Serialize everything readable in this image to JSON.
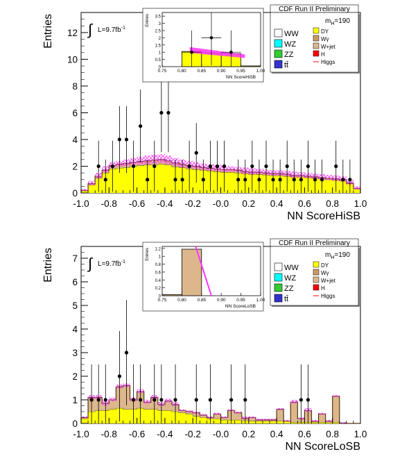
{
  "chart_data": [
    {
      "type": "bar",
      "ylabel": "Entries",
      "xlabel": "NN ScoreHiSB",
      "title": "CDF Run II Preliminary",
      "luminosity": "L=9.7fb",
      "lumi_exp": "-1",
      "mass_label": "m",
      "mass_sub": "H",
      "mass_value": "=190",
      "xlim": [
        -1.0,
        1.0
      ],
      "ylim": [
        0,
        13.5
      ],
      "xticks": [
        "-1.0",
        "-0.8",
        "-0.6",
        "-0.4",
        "-0.2",
        "-0.0",
        "0.2",
        "0.4",
        "0.6",
        "0.8",
        "1.0"
      ],
      "yticks": [
        "0",
        "2",
        "4",
        "6",
        "8",
        "10",
        "12"
      ],
      "bin_edges": [
        -1.0,
        -0.95,
        -0.9,
        -0.85,
        -0.8,
        -0.75,
        -0.7,
        -0.65,
        -0.6,
        -0.55,
        -0.5,
        -0.45,
        -0.4,
        -0.35,
        -0.3,
        -0.25,
        -0.2,
        -0.15,
        -0.1,
        -0.05,
        0.0,
        0.05,
        0.1,
        0.15,
        0.2,
        0.25,
        0.3,
        0.35,
        0.4,
        0.45,
        0.5,
        0.55,
        0.6,
        0.65,
        0.7,
        0.75,
        0.8,
        0.85,
        0.9,
        0.95,
        1.0
      ],
      "stack": [
        {
          "name": "DY",
          "color": "#ffff00",
          "values": [
            0.15,
            0.6,
            1.1,
            1.5,
            1.8,
            1.85,
            1.9,
            2.0,
            2.05,
            2.1,
            2.1,
            2.15,
            2.1,
            1.95,
            1.9,
            1.8,
            1.75,
            1.7,
            1.65,
            1.6,
            1.55,
            1.55,
            1.5,
            1.45,
            1.4,
            1.4,
            1.35,
            1.3,
            1.3,
            1.25,
            1.2,
            1.2,
            1.15,
            1.1,
            1.05,
            1.0,
            0.95,
            0.9,
            0.7,
            0.3
          ]
        },
        {
          "name": "W+jet",
          "color": "#dcb78c",
          "values": [
            0.05,
            0.1,
            0.15,
            0.2,
            0.25,
            0.3,
            0.3,
            0.3,
            0.3,
            0.3,
            0.35,
            0.35,
            0.3,
            0.3,
            0.25,
            0.25,
            0.25,
            0.2,
            0.2,
            0.2,
            0.2,
            0.2,
            0.2,
            0.15,
            0.15,
            0.15,
            0.15,
            0.15,
            0.15,
            0.15,
            0.1,
            0.1,
            0.1,
            0.1,
            0.1,
            0.1,
            0.1,
            0.1,
            0.05,
            0.05
          ]
        }
      ],
      "band": [
        0.3,
        0.9,
        1.5,
        2.0,
        2.3,
        2.4,
        2.5,
        2.6,
        2.7,
        2.8,
        2.85,
        2.9,
        2.8,
        2.6,
        2.5,
        2.4,
        2.3,
        2.2,
        2.15,
        2.1,
        2.05,
        2.0,
        1.95,
        1.9,
        1.85,
        1.8,
        1.75,
        1.7,
        1.7,
        1.65,
        1.6,
        1.55,
        1.5,
        1.45,
        1.4,
        1.35,
        1.3,
        1.25,
        1.0,
        0.5
      ],
      "data_x": [
        -0.875,
        -0.825,
        -0.775,
        -0.725,
        -0.675,
        -0.625,
        -0.575,
        -0.525,
        -0.475,
        -0.425,
        -0.375,
        -0.325,
        -0.275,
        -0.225,
        -0.175,
        -0.125,
        -0.075,
        -0.025,
        0.025,
        0.075,
        0.125,
        0.175,
        0.225,
        0.275,
        0.325,
        0.375,
        0.425,
        0.475,
        0.525,
        0.575,
        0.625,
        0.675,
        0.725,
        0.775,
        0.825,
        0.875,
        0.925
      ],
      "data_y": [
        2,
        1,
        2,
        4,
        4,
        2,
        5,
        1,
        2,
        6,
        6,
        1,
        1,
        2,
        3,
        1,
        2,
        2,
        2,
        0,
        1,
        1,
        2,
        1,
        2,
        1,
        1,
        2,
        1,
        1,
        2,
        1,
        1,
        0,
        2,
        1,
        1
      ],
      "inset": {
        "ylabel": "Entries",
        "xlabel": "NN ScoreHiSB",
        "xlim": [
          0.75,
          1.0
        ],
        "ylim": [
          0,
          3.75
        ],
        "xticks": [
          "0.75",
          "0.80",
          "0.85",
          "0.90",
          "0.95",
          "1.00"
        ],
        "yticks": [
          "0",
          "0.5",
          "1",
          "1.5",
          "2",
          "2.5",
          "3",
          "3.5"
        ],
        "bin_edges": [
          0.75,
          0.8,
          0.85,
          0.9,
          0.95,
          1.0
        ],
        "stack_values": [
          0.0,
          1.05,
          0.95,
          0.9,
          0.05
        ],
        "band_start": [
          0.82,
          1.2
        ],
        "band_end": [
          0.96,
          0.75
        ],
        "data_x": [
          0.825,
          0.875,
          0.925
        ],
        "data_y": [
          1,
          2,
          1
        ]
      }
    },
    {
      "type": "bar",
      "ylabel": "Entries",
      "xlabel": "NN ScoreLoSB",
      "title": "CDF Run II Preliminary",
      "luminosity": "L=9.7fb",
      "lumi_exp": "-1",
      "mass_label": "m",
      "mass_sub": "H",
      "mass_value": "=190",
      "xlim": [
        -1.0,
        1.0
      ],
      "ylim": [
        0,
        7.5
      ],
      "xticks": [
        "-1.0",
        "-0.8",
        "-0.6",
        "-0.4",
        "-0.2",
        "-0.0",
        "0.2",
        "0.4",
        "0.6",
        "0.8",
        "1.0"
      ],
      "yticks": [
        "0",
        "1",
        "2",
        "3",
        "4",
        "5",
        "6",
        "7"
      ],
      "bin_edges": [
        -1.0,
        -0.95,
        -0.9,
        -0.85,
        -0.8,
        -0.75,
        -0.7,
        -0.65,
        -0.6,
        -0.55,
        -0.5,
        -0.45,
        -0.4,
        -0.35,
        -0.3,
        -0.25,
        -0.2,
        -0.15,
        -0.1,
        -0.05,
        0.0,
        0.05,
        0.1,
        0.15,
        0.2,
        0.25,
        0.3,
        0.35,
        0.4,
        0.45,
        0.5,
        0.55,
        0.6,
        0.65,
        0.7,
        0.75,
        0.8,
        0.85,
        0.9,
        0.95,
        1.0
      ],
      "stack": [
        {
          "name": "DY",
          "color": "#ffff00",
          "values": [
            0.2,
            0.5,
            0.55,
            0.55,
            0.6,
            0.65,
            0.6,
            0.6,
            0.65,
            0.6,
            0.6,
            0.55,
            0.55,
            0.5,
            0.45,
            0.4,
            0.3,
            0.25,
            0.2,
            0.2,
            0.15,
            0.15,
            0.15,
            0.12,
            0.1,
            0.1,
            0.1,
            0.1,
            0.1,
            0.1,
            0.05,
            0.05,
            0.05,
            0.05,
            0.05,
            0.05,
            0.05,
            0.02,
            0.0,
            0.0
          ]
        },
        {
          "name": "W+jet",
          "color": "#dcb78c",
          "values": [
            0.05,
            0.6,
            0.55,
            0.3,
            0.4,
            0.9,
            1.0,
            0.4,
            0.7,
            0.3,
            0.5,
            0.25,
            0.4,
            0.3,
            0.1,
            0.1,
            0.15,
            0.1,
            0.05,
            0.2,
            0.1,
            0.4,
            0.3,
            0.1,
            0.15,
            0.05,
            0.05,
            0.05,
            0.5,
            0.0,
            0.85,
            0.15,
            0.5,
            0.05,
            0.35,
            0.05,
            1.1,
            0.0,
            0.0,
            0.0
          ]
        }
      ],
      "band": [
        0.3,
        1.2,
        1.2,
        1.0,
        1.1,
        1.65,
        1.7,
        1.1,
        1.45,
        1.0,
        1.2,
        0.9,
        1.05,
        0.9,
        0.6,
        0.55,
        0.5,
        0.4,
        0.3,
        0.45,
        0.3,
        0.6,
        0.5,
        0.3,
        0.3,
        0.2,
        0.2,
        0.2,
        0.65,
        0.15,
        1.0,
        0.25,
        0.65,
        0.15,
        0.45,
        0.15,
        1.2,
        0.05,
        0.0,
        0.0
      ],
      "data_x": [
        -0.925,
        -0.875,
        -0.825,
        -0.775,
        -0.725,
        -0.675,
        -0.625,
        -0.575,
        -0.525,
        -0.475,
        -0.425,
        -0.375,
        -0.325,
        -0.275,
        -0.225,
        -0.175,
        -0.125,
        -0.075,
        -0.025,
        0.025,
        0.075,
        0.125,
        0.175,
        0.225,
        0.275,
        0.325,
        0.375,
        0.425,
        0.475,
        0.525,
        0.575,
        0.625,
        0.675,
        0.725,
        0.775,
        0.825,
        0.875,
        0.925
      ],
      "data_y": [
        1,
        1,
        1,
        0,
        2,
        3,
        1,
        1,
        0,
        1,
        1,
        0,
        1,
        0,
        0,
        1,
        0,
        1,
        0,
        0,
        1,
        0,
        1,
        0,
        0,
        0,
        0,
        0,
        0,
        0,
        1,
        1,
        0,
        0,
        0,
        0,
        0,
        0
      ],
      "inset": {
        "ylabel": "Entries",
        "xlabel": "NN ScoreLoSB",
        "xlim": [
          0.75,
          1.0
        ],
        "ylim": [
          0,
          1.25
        ],
        "xticks": [
          "0.75",
          "0.80",
          "0.85",
          "0.90",
          "0.95",
          "1.00"
        ],
        "yticks": [
          "0",
          "0.2",
          "0.4",
          "0.6",
          "0.8",
          "1",
          "1.2"
        ],
        "bin_edges": [
          0.75,
          0.8,
          0.85,
          0.9,
          0.95,
          1.0
        ],
        "stack_values": [
          0.03,
          1.18,
          0.0,
          0.0,
          0.0
        ],
        "band_start": [
          0.835,
          1.35
        ],
        "band_end": [
          0.875,
          0.0
        ],
        "data_x": [],
        "data_y": []
      }
    }
  ],
  "legend": {
    "left": [
      {
        "label": "WW",
        "color": "#ffffff"
      },
      {
        "label": "WZ",
        "color": "#00ffff"
      },
      {
        "label": "ZZ",
        "color": "#33cc33"
      },
      {
        "label": "tt̄",
        "color": "#3333cc"
      }
    ],
    "right": [
      {
        "label": "DY",
        "color": "#ffff00"
      },
      {
        "label": "Wγ",
        "color": "#cc9966"
      },
      {
        "label": "W+jet",
        "color": "#dcb78c"
      },
      {
        "label": "H",
        "color": "#ff0000"
      },
      {
        "label": "Higgs",
        "color": "#ff0000",
        "line": true
      }
    ]
  },
  "colors": {
    "dy": "#ffff00",
    "wjet": "#dcb78c",
    "band": "#ff33ff",
    "data": "#000000"
  }
}
